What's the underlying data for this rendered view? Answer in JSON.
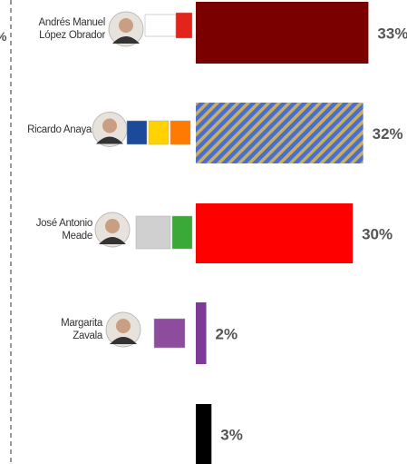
{
  "chart_data": {
    "type": "hbar",
    "axis_label": "%",
    "categories": [
      "Andrés Manuel\nLópez Obrador",
      "Ricardo Anaya",
      "José Antonio\nMeade",
      "Margarita\nZavala",
      null
    ],
    "values": [
      33,
      32,
      30,
      2,
      3
    ],
    "value_labels": [
      "33%",
      "32%",
      "30%",
      "2%",
      "3%"
    ],
    "colors": [
      "#7a0000",
      "#4a6fd0",
      "#ff0000",
      "#7e3a96",
      "#000000"
    ],
    "stripe_color": "#c9b060"
  }
}
